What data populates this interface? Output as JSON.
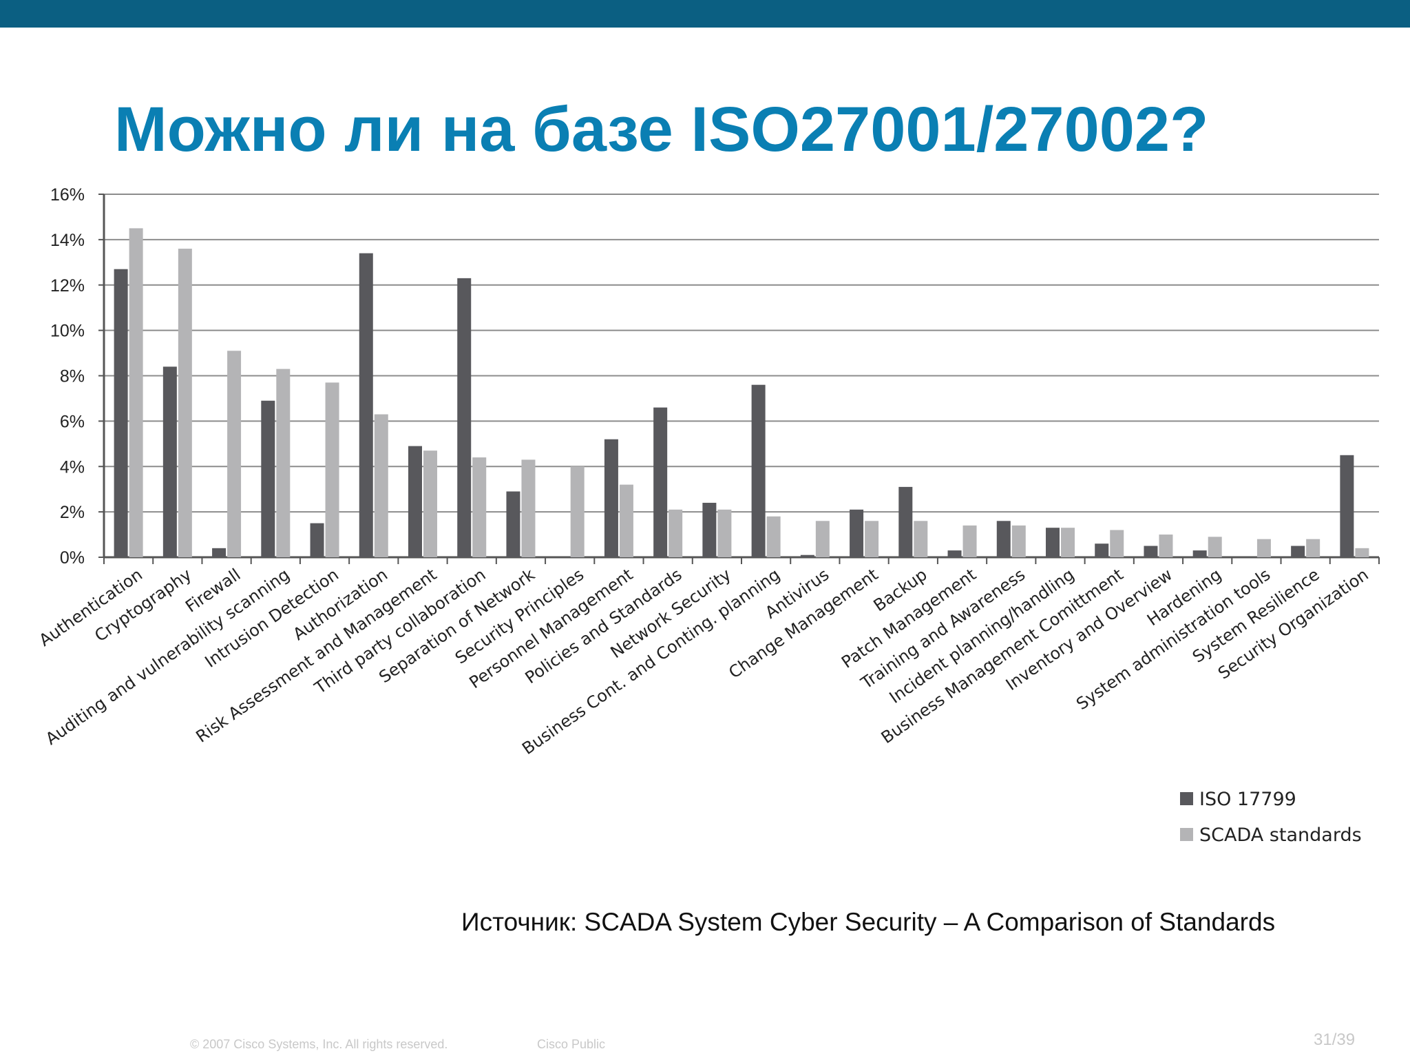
{
  "slide": {
    "title": "Можно ли на базе ISO27001/27002?",
    "source": "Источник: SCADA System Cyber Security – A Comparison of Standards",
    "copyright": "© 2007 Cisco Systems, Inc. All rights reserved.",
    "classification": "Cisco Public",
    "page": "31/39"
  },
  "colors": {
    "top_bar": "#0b5f82",
    "title": "#0a7fb3",
    "iso_series": "#58585c",
    "scada_series": "#b4b4b6",
    "gridline": "#8c8c8c"
  },
  "chart_data": {
    "type": "bar",
    "title": "",
    "xlabel": "",
    "ylabel": "",
    "ylim": [
      0,
      16
    ],
    "y_unit": "%",
    "y_ticks": [
      "0%",
      "2%",
      "4%",
      "6%",
      "8%",
      "10%",
      "12%",
      "14%",
      "16%"
    ],
    "grid": true,
    "legend_position": "bottom-right",
    "categories": [
      "Authentication",
      "Cryptography",
      "Firewall",
      "Auditing and vulnerability scanning",
      "Intrusion Detection",
      "Authorization",
      "Risk Assessment and Management",
      "Third party collaboration",
      "Separation of Network",
      "Security Principles",
      "Personnel Management",
      "Policies and Standards",
      "Network Security",
      "Business Cont. and Conting. planning",
      "Antivirus",
      "Change Management",
      "Backup",
      "Patch Management",
      "Training and Awareness",
      "Incident planning/handling",
      "Business Management Comittment",
      "Inventory and Overview",
      "Hardening",
      "System administration  tools",
      "System Resilience",
      "Security Organization"
    ],
    "series": [
      {
        "name": "ISO 17799",
        "values": [
          12.7,
          8.4,
          0.4,
          6.9,
          1.5,
          13.4,
          4.9,
          12.3,
          2.9,
          0.0,
          5.2,
          6.6,
          2.4,
          7.6,
          0.1,
          2.1,
          3.1,
          0.3,
          1.6,
          1.3,
          0.6,
          0.5,
          0.3,
          0.0,
          0.5,
          4.5
        ]
      },
      {
        "name": "SCADA standards",
        "values": [
          14.5,
          13.6,
          9.1,
          8.3,
          7.7,
          6.3,
          4.7,
          4.4,
          4.3,
          4.0,
          3.2,
          2.1,
          2.1,
          1.8,
          1.6,
          1.6,
          1.6,
          1.4,
          1.4,
          1.3,
          1.2,
          1.0,
          0.9,
          0.8,
          0.8,
          0.4
        ]
      }
    ]
  }
}
